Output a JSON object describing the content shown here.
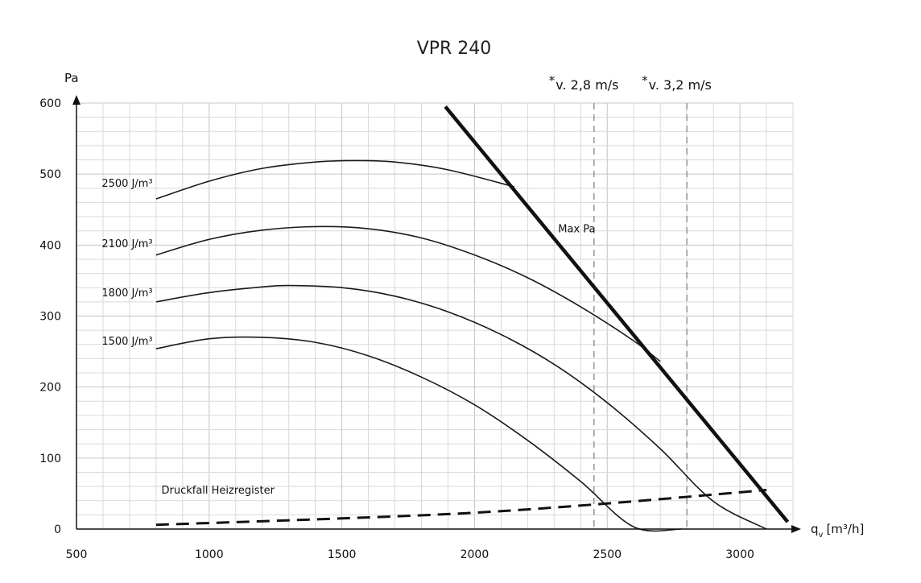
{
  "chart_data": {
    "type": "line",
    "title": "VPR 240",
    "xlabel": "q",
    "xlabel_sub": "v",
    "xlabel_unit": "[m³/h]",
    "ylabel": "Pa",
    "xlim": [
      500,
      3200
    ],
    "ylim": [
      0,
      600
    ],
    "x_ticks": [
      500,
      1000,
      1500,
      2000,
      2500,
      3000
    ],
    "y_ticks": [
      0,
      100,
      200,
      300,
      400,
      500,
      600
    ],
    "grid": true,
    "series": [
      {
        "name": "2500 J/m³",
        "x": [
          800,
          1000,
          1200,
          1400,
          1550,
          1700,
          1900,
          2150
        ],
        "y": [
          465,
          490,
          508,
          517,
          519,
          517,
          506,
          482
        ]
      },
      {
        "name": "2100 J/m³",
        "x": [
          800,
          1000,
          1200,
          1400,
          1600,
          1800,
          2000,
          2200,
          2400,
          2600,
          2700
        ],
        "y": [
          386,
          408,
          421,
          426,
          423,
          410,
          386,
          354,
          313,
          265,
          236
        ]
      },
      {
        "name": "1800 J/m³",
        "x": [
          800,
          1000,
          1200,
          1300,
          1500,
          1700,
          1900,
          2100,
          2300,
          2500,
          2700,
          2900,
          3100
        ],
        "y": [
          320,
          333,
          341,
          343,
          340,
          328,
          306,
          274,
          232,
          178,
          113,
          39,
          0
        ]
      },
      {
        "name": "1500 J/m³",
        "x": [
          800,
          1000,
          1200,
          1400,
          1600,
          1800,
          2000,
          2200,
          2400,
          2600,
          2780
        ],
        "y": [
          254,
          268,
          270,
          263,
          244,
          214,
          175,
          125,
          67,
          3,
          0
        ]
      },
      {
        "name": "Max Pa",
        "x": [
          1890,
          3180
        ],
        "y": [
          595,
          10
        ]
      },
      {
        "name": "Druckfall Heizregister",
        "x": [
          800,
          1500,
          2000,
          2500,
          3100
        ],
        "y": [
          6,
          15,
          23,
          36,
          55
        ]
      }
    ],
    "annotations": [
      {
        "text": "2500 J/m³",
        "x": 595,
        "y": 482
      },
      {
        "text": "2100 J/m³",
        "x": 595,
        "y": 397
      },
      {
        "text": "1800 J/m³",
        "x": 595,
        "y": 328
      },
      {
        "text": "1500 J/m³",
        "x": 595,
        "y": 260
      },
      {
        "text": "Max Pa",
        "x": 2315,
        "y": 418
      },
      {
        "text": "Druckfall Heizregister",
        "x": 820,
        "y": 50
      }
    ],
    "velocity_lines": [
      {
        "label_star": "*",
        "label": "v. 2,8 m/s",
        "x": 2450
      },
      {
        "label_star": "*",
        "label": "v. 3,2 m/s",
        "x": 2800
      }
    ]
  }
}
